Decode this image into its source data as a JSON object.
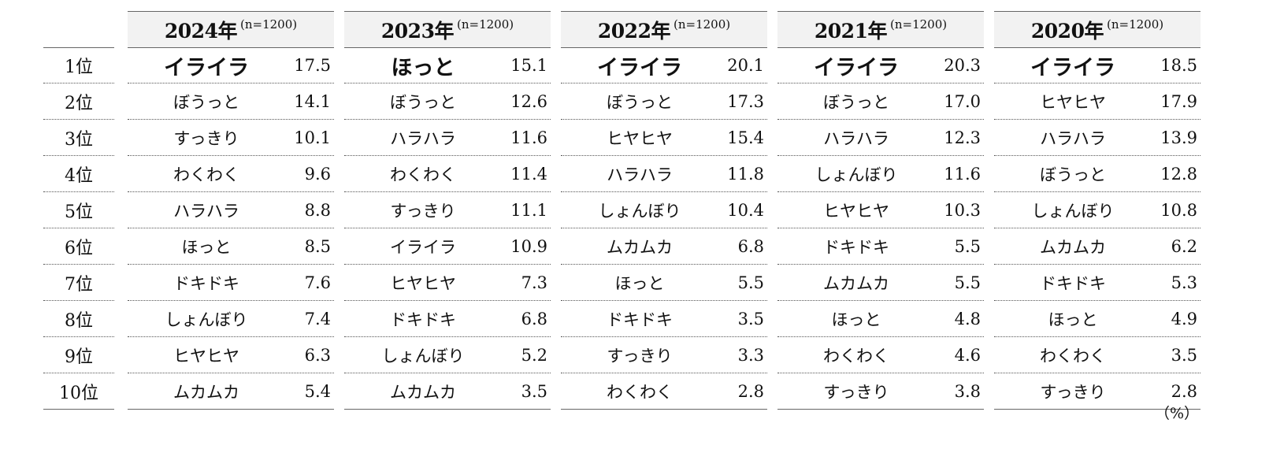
{
  "ranks": [
    "1位",
    "2位",
    "3位",
    "4位",
    "5位",
    "6位",
    "7位",
    "8位",
    "9位",
    "10位"
  ],
  "unit_label": "（%）",
  "chart_data": {
    "type": "table",
    "tables": [
      {
        "year": "2024年",
        "n": "(n=1200)",
        "rows": [
          {
            "term": "イライラ",
            "value": "17.5"
          },
          {
            "term": "ぼうっと",
            "value": "14.1"
          },
          {
            "term": "すっきり",
            "value": "10.1"
          },
          {
            "term": "わくわく",
            "value": "9.6"
          },
          {
            "term": "ハラハラ",
            "value": "8.8"
          },
          {
            "term": "ほっと",
            "value": "8.5"
          },
          {
            "term": "ドキドキ",
            "value": "7.6"
          },
          {
            "term": "しょんぼり",
            "value": "7.4"
          },
          {
            "term": "ヒヤヒヤ",
            "value": "6.3"
          },
          {
            "term": "ムカムカ",
            "value": "5.4"
          }
        ]
      },
      {
        "year": "2023年",
        "n": "(n=1200)",
        "rows": [
          {
            "term": "ほっと",
            "value": "15.1"
          },
          {
            "term": "ぼうっと",
            "value": "12.6"
          },
          {
            "term": "ハラハラ",
            "value": "11.6"
          },
          {
            "term": "わくわく",
            "value": "11.4"
          },
          {
            "term": "すっきり",
            "value": "11.1"
          },
          {
            "term": "イライラ",
            "value": "10.9"
          },
          {
            "term": "ヒヤヒヤ",
            "value": "7.3"
          },
          {
            "term": "ドキドキ",
            "value": "6.8"
          },
          {
            "term": "しょんぼり",
            "value": "5.2"
          },
          {
            "term": "ムカムカ",
            "value": "3.5"
          }
        ]
      },
      {
        "year": "2022年",
        "n": "(n=1200)",
        "rows": [
          {
            "term": "イライラ",
            "value": "20.1"
          },
          {
            "term": "ぼうっと",
            "value": "17.3"
          },
          {
            "term": "ヒヤヒヤ",
            "value": "15.4"
          },
          {
            "term": "ハラハラ",
            "value": "11.8"
          },
          {
            "term": "しょんぼり",
            "value": "10.4"
          },
          {
            "term": "ムカムカ",
            "value": "6.8"
          },
          {
            "term": "ほっと",
            "value": "5.5"
          },
          {
            "term": "ドキドキ",
            "value": "3.5"
          },
          {
            "term": "すっきり",
            "value": "3.3"
          },
          {
            "term": "わくわく",
            "value": "2.8"
          }
        ]
      },
      {
        "year": "2021年",
        "n": "(n=1200)",
        "rows": [
          {
            "term": "イライラ",
            "value": "20.3"
          },
          {
            "term": "ぼうっと",
            "value": "17.0"
          },
          {
            "term": "ハラハラ",
            "value": "12.3"
          },
          {
            "term": "しょんぼり",
            "value": "11.6"
          },
          {
            "term": "ヒヤヒヤ",
            "value": "10.3"
          },
          {
            "term": "ドキドキ",
            "value": "5.5"
          },
          {
            "term": "ムカムカ",
            "value": "5.5"
          },
          {
            "term": "ほっと",
            "value": "4.8"
          },
          {
            "term": "わくわく",
            "value": "4.6"
          },
          {
            "term": "すっきり",
            "value": "3.8"
          }
        ]
      },
      {
        "year": "2020年",
        "n": "(n=1200)",
        "rows": [
          {
            "term": "イライラ",
            "value": "18.5"
          },
          {
            "term": "ヒヤヒヤ",
            "value": "17.9"
          },
          {
            "term": "ハラハラ",
            "value": "13.9"
          },
          {
            "term": "ぼうっと",
            "value": "12.8"
          },
          {
            "term": "しょんぼり",
            "value": "10.8"
          },
          {
            "term": "ムカムカ",
            "value": "6.2"
          },
          {
            "term": "ドキドキ",
            "value": "5.3"
          },
          {
            "term": "ほっと",
            "value": "4.9"
          },
          {
            "term": "わくわく",
            "value": "3.5"
          },
          {
            "term": "すっきり",
            "value": "2.8"
          }
        ]
      }
    ]
  }
}
